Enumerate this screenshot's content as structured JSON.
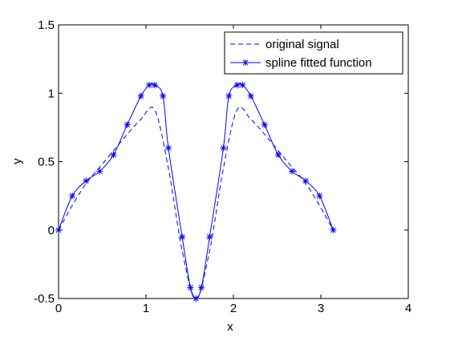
{
  "chart_data": {
    "type": "line",
    "title": "",
    "xlabel": "x",
    "ylabel": "y",
    "xlim": [
      0,
      4
    ],
    "ylim": [
      -0.5,
      1.5
    ],
    "xticks": [
      0,
      1,
      2,
      3,
      4
    ],
    "yticks": [
      -0.5,
      0,
      0.5,
      1,
      1.5
    ],
    "xtick_labels": [
      "0",
      "1",
      "2",
      "3",
      "4"
    ],
    "ytick_labels": [
      "-0.5",
      "0",
      "0.5",
      "1",
      "1.5"
    ],
    "grid": false,
    "legend_position": "top-right",
    "series": [
      {
        "name": "original signal",
        "style": "dashed",
        "marker": "none",
        "color": "#0000ff",
        "x": [
          0,
          0.1571,
          0.3142,
          0.4712,
          0.6283,
          0.7854,
          0.9425,
          1.0996,
          1.2566,
          1.4137,
          1.5708,
          1.7279,
          1.885,
          2.042,
          2.1991,
          2.3562,
          2.5133,
          2.6704,
          2.8274,
          2.9845,
          3.1416
        ],
        "y": [
          0,
          0.18,
          0.34,
          0.46,
          0.58,
          0.7,
          0.81,
          0.88,
          0.45,
          -0.15,
          -0.5,
          -0.15,
          0.45,
          0.88,
          0.81,
          0.7,
          0.58,
          0.46,
          0.34,
          0.18,
          0
        ]
      },
      {
        "name": "spline fitted function",
        "style": "solid",
        "marker": "*",
        "color": "#0000ff",
        "x": [
          0,
          0.1571,
          0.3142,
          0.4712,
          0.6283,
          0.7854,
          0.9425,
          1.0367,
          1.0996,
          1.1938,
          1.2566,
          1.4137,
          1.508,
          1.5708,
          1.6336,
          1.7279,
          1.885,
          1.9478,
          2.042,
          2.1049,
          2.1991,
          2.3562,
          2.5133,
          2.6704,
          2.8274,
          2.9845,
          3.1416
        ],
        "y": [
          0,
          0.25,
          0.36,
          0.43,
          0.55,
          0.77,
          0.98,
          1.06,
          1.06,
          0.98,
          0.6,
          -0.05,
          -0.42,
          -0.5,
          -0.42,
          -0.05,
          0.6,
          0.98,
          1.06,
          1.06,
          0.98,
          0.77,
          0.55,
          0.43,
          0.36,
          0.25,
          0
        ]
      }
    ]
  }
}
